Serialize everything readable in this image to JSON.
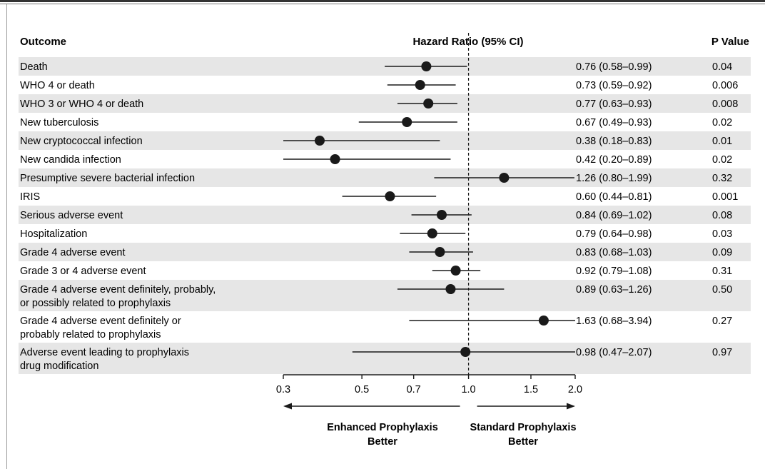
{
  "chart_data": {
    "type": "forest",
    "headers": {
      "outcome": "Outcome",
      "hazard_ratio": "Hazard Ratio (95% CI)",
      "p_value": "P Value"
    },
    "rows": [
      {
        "label": [
          "Death"
        ],
        "hr": 0.76,
        "lo": 0.58,
        "hi": 0.99,
        "ci_text": "0.76 (0.58–0.99)",
        "p": "0.04"
      },
      {
        "label": [
          "WHO 4 or death"
        ],
        "hr": 0.73,
        "lo": 0.59,
        "hi": 0.92,
        "ci_text": "0.73 (0.59–0.92)",
        "p": "0.006"
      },
      {
        "label": [
          "WHO 3 or WHO 4 or death"
        ],
        "hr": 0.77,
        "lo": 0.63,
        "hi": 0.93,
        "ci_text": "0.77 (0.63–0.93)",
        "p": "0.008"
      },
      {
        "label": [
          "New tuberculosis"
        ],
        "hr": 0.67,
        "lo": 0.49,
        "hi": 0.93,
        "ci_text": "0.67 (0.49–0.93)",
        "p": "0.02"
      },
      {
        "label": [
          "New cryptococcal infection"
        ],
        "hr": 0.38,
        "lo": 0.18,
        "hi": 0.83,
        "ci_text": "0.38 (0.18–0.83)",
        "p": "0.01"
      },
      {
        "label": [
          "New candida infection"
        ],
        "hr": 0.42,
        "lo": 0.2,
        "hi": 0.89,
        "ci_text": "0.42 (0.20–0.89)",
        "p": "0.02"
      },
      {
        "label": [
          "Presumptive severe bacterial infection"
        ],
        "hr": 1.26,
        "lo": 0.8,
        "hi": 1.99,
        "ci_text": "1.26 (0.80–1.99)",
        "p": "0.32"
      },
      {
        "label": [
          "IRIS"
        ],
        "hr": 0.6,
        "lo": 0.44,
        "hi": 0.81,
        "ci_text": "0.60 (0.44–0.81)",
        "p": "0.001"
      },
      {
        "label": [
          "Serious adverse event"
        ],
        "hr": 0.84,
        "lo": 0.69,
        "hi": 1.02,
        "ci_text": "0.84 (0.69–1.02)",
        "p": "0.08"
      },
      {
        "label": [
          "Hospitalization"
        ],
        "hr": 0.79,
        "lo": 0.64,
        "hi": 0.98,
        "ci_text": "0.79 (0.64–0.98)",
        "p": "0.03"
      },
      {
        "label": [
          "Grade 4 adverse event"
        ],
        "hr": 0.83,
        "lo": 0.68,
        "hi": 1.03,
        "ci_text": "0.83 (0.68–1.03)",
        "p": "0.09"
      },
      {
        "label": [
          "Grade 3 or 4 adverse event"
        ],
        "hr": 0.92,
        "lo": 0.79,
        "hi": 1.08,
        "ci_text": "0.92 (0.79–1.08)",
        "p": "0.31"
      },
      {
        "label": [
          "Grade 4 adverse event definitely, probably,",
          "   or possibly related to prophylaxis"
        ],
        "hr": 0.89,
        "lo": 0.63,
        "hi": 1.26,
        "ci_text": "0.89 (0.63–1.26)",
        "p": "0.50"
      },
      {
        "label": [
          "Grade 4 adverse event definitely or",
          "   probably related to prophylaxis"
        ],
        "hr": 1.63,
        "lo": 0.68,
        "hi": 3.94,
        "ci_text": "1.63 (0.68–3.94)",
        "p": "0.27"
      },
      {
        "label": [
          "Adverse event leading to prophylaxis",
          "   drug modification"
        ],
        "hr": 0.98,
        "lo": 0.47,
        "hi": 2.07,
        "ci_text": "0.98 (0.47–2.07)",
        "p": "0.97"
      }
    ],
    "x_axis": {
      "scale": "log",
      "range": [
        0.3,
        2.0
      ],
      "ticks": [
        {
          "value": 0.3,
          "label": "0.3"
        },
        {
          "value": 0.5,
          "label": "0.5"
        },
        {
          "value": 0.7,
          "label": "0.7"
        },
        {
          "value": 1.0,
          "label": "1.0"
        },
        {
          "value": 1.5,
          "label": "1.5"
        },
        {
          "value": 2.0,
          "label": "2.0"
        }
      ],
      "reference_line": 1.0
    },
    "direction_labels": {
      "left": [
        "Enhanced Prophylaxis",
        "Better"
      ],
      "right": [
        "Standard Prophylaxis",
        "Better"
      ]
    },
    "colors": {
      "band": "#e6e6e6",
      "marker": "#1a1a1a",
      "line": "#1a1a1a"
    }
  }
}
